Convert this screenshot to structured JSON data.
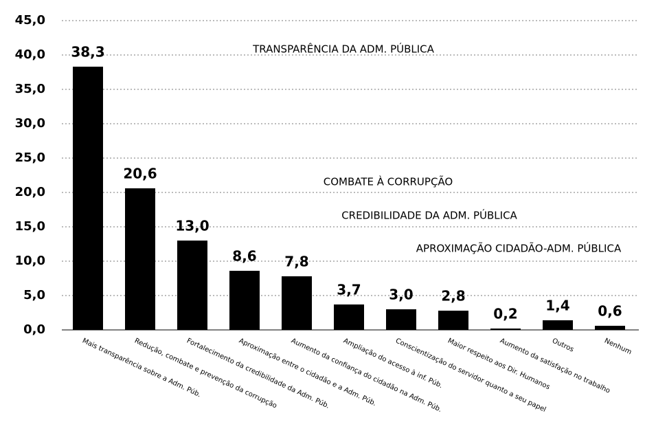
{
  "chart_data": {
    "type": "bar",
    "categories": [
      "Mais transparência sobre a Adm. Púb.",
      "Redução, combate e prevenção da corrupção",
      "Fortalecimento da credibilidade da Adm. Púb.",
      "Aproximação entre o cidadão e a Adm. Púb.",
      "Aumento da confiança do cidadão na Adm. Púb.",
      "Ampliação do acesso à inf. Púb.",
      "Conscientização do servidor quanto a seu papel",
      "Maior respeito aos Dir. Humanos",
      "Aumento da satisfação no trabalho",
      "Outros",
      "Nenhum"
    ],
    "values": [
      38.3,
      20.6,
      13.0,
      8.6,
      7.8,
      3.7,
      3.0,
      2.8,
      0.2,
      1.4,
      0.6
    ],
    "value_labels": [
      "38,3",
      "20,6",
      "13,0",
      "8,6",
      "7,8",
      "3,7",
      "3,0",
      "2,8",
      "0,2",
      "1,4",
      "0,6"
    ],
    "color": "#000000",
    "ylim": [
      0,
      45
    ],
    "yticks": [
      {
        "value": 0,
        "label": "0,0"
      },
      {
        "value": 5,
        "label": "5,0"
      },
      {
        "value": 10,
        "label": "10,0"
      },
      {
        "value": 15,
        "label": "15,0"
      },
      {
        "value": 20,
        "label": "20,0"
      },
      {
        "value": 25,
        "label": "25,0"
      },
      {
        "value": 30,
        "label": "30,0"
      },
      {
        "value": 35,
        "label": "35,0"
      },
      {
        "value": 40,
        "label": "40,0"
      },
      {
        "value": 45,
        "label": "45,0"
      }
    ],
    "grid": true,
    "annotations": [
      "TRANSPARÊNCIA DA ADM. PÚBLICA",
      "COMBATE À CORRUPÇÃO",
      "CREDIBILIDADE DA ADM. PÚBLICA",
      "APROXIMAÇÃO CIDADÃO-ADM. PÚBLICA"
    ]
  }
}
